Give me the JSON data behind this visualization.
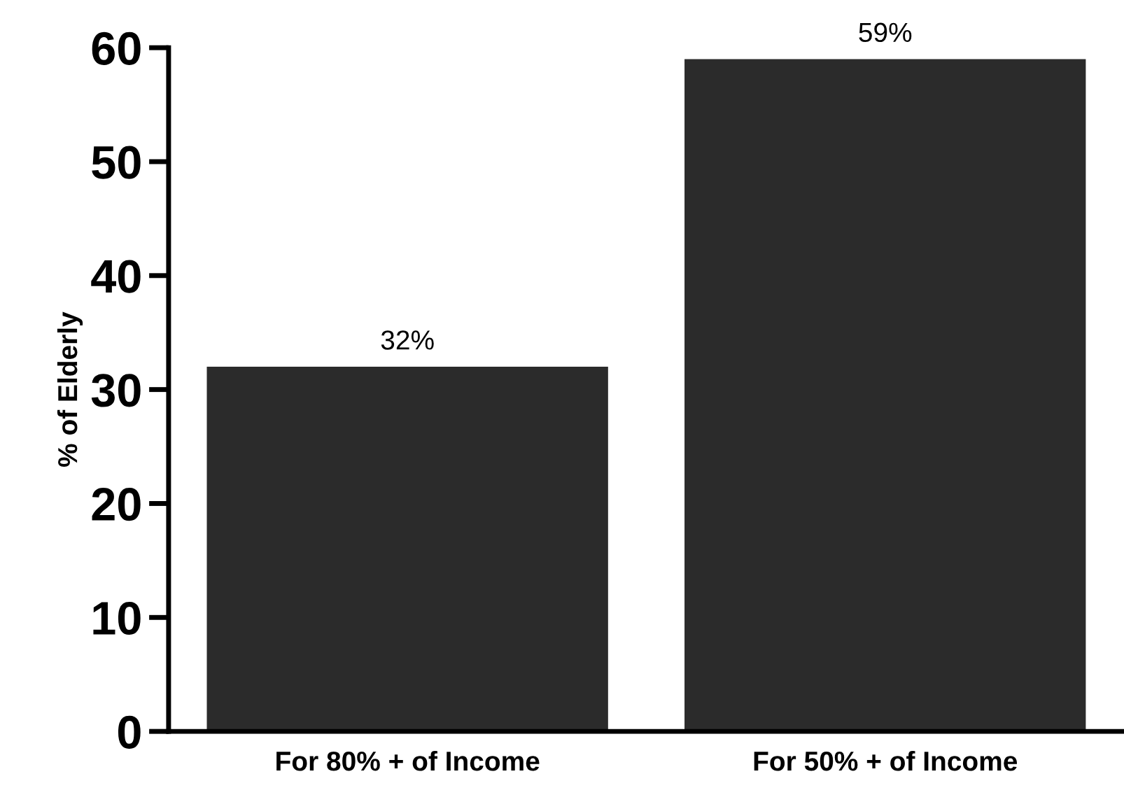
{
  "chart_data": {
    "type": "bar",
    "ylabel": "% of Elderly",
    "categories": [
      "For 80% + of Income",
      "For 50% + of Income"
    ],
    "values": [
      32,
      59
    ],
    "color": "#2b2b2b",
    "value_labels": [
      "32%",
      "59%"
    ],
    "ylim": [
      0,
      60
    ],
    "yticks": [
      0,
      10,
      20,
      30,
      40,
      50,
      60
    ],
    "grid": false,
    "legend": false
  }
}
